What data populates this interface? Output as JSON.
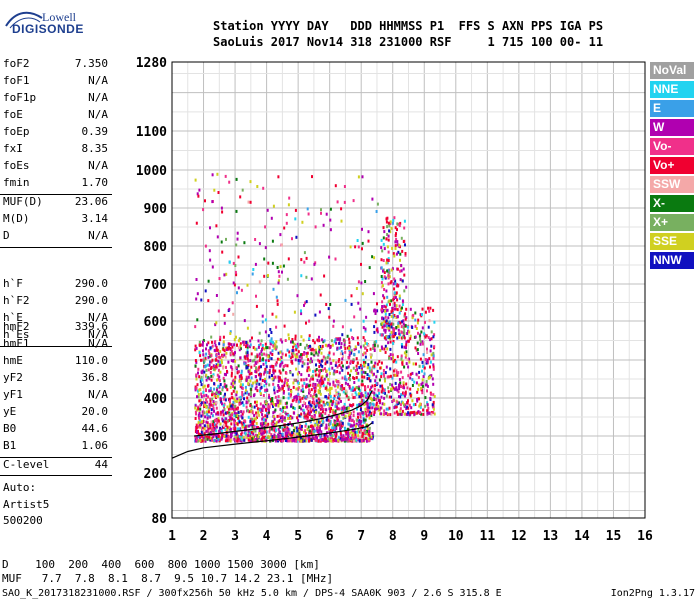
{
  "logo": {
    "line1": "Lowell",
    "line2": "DIGISONDE"
  },
  "header": {
    "line1": "Station YYYY DAY   DDD HHMMSS P1  FFS S AXN PPS IGA PS",
    "line2": "SaoLuis 2017 Nov14 318 231000 RSF     1 715 100 00- 11"
  },
  "params_group1": [
    {
      "name": "foF2",
      "value": "7.350"
    },
    {
      "name": "foF1",
      "value": "N/A"
    },
    {
      "name": "foF1p",
      "value": "N/A"
    },
    {
      "name": "foE",
      "value": "N/A"
    },
    {
      "name": "foEp",
      "value": "0.39"
    },
    {
      "name": "fxI",
      "value": "8.35"
    },
    {
      "name": "foEs",
      "value": "N/A"
    },
    {
      "name": "fmin",
      "value": "1.70"
    }
  ],
  "params_group2": [
    {
      "name": "MUF(D)",
      "value": "23.06"
    },
    {
      "name": "M(D)",
      "value": "3.14"
    },
    {
      "name": "D",
      "value": "N/A"
    }
  ],
  "params_group3": [
    {
      "name": "h`F",
      "value": "290.0"
    },
    {
      "name": "h`F2",
      "value": "290.0"
    },
    {
      "name": "h`E",
      "value": "N/A"
    },
    {
      "name": "h`Es",
      "value": "N/A"
    }
  ],
  "params_group4": [
    {
      "name": "hmF2",
      "value": "339.6"
    },
    {
      "name": "hmF1",
      "value": "N/A"
    },
    {
      "name": "hmE",
      "value": "110.0"
    },
    {
      "name": "yF2",
      "value": "36.8"
    },
    {
      "name": "yF1",
      "value": "N/A"
    },
    {
      "name": "yE",
      "value": "20.0"
    },
    {
      "name": "B0",
      "value": "44.6"
    },
    {
      "name": "B1",
      "value": "1.06"
    }
  ],
  "c_level": {
    "name": "C-level",
    "value": "44"
  },
  "auto": {
    "label": "Auto:",
    "artist": "Artist5",
    "code": "500200"
  },
  "legend": [
    {
      "label": "NoVal",
      "color": "#a0a0a0"
    },
    {
      "label": "NNE",
      "color": "#22d3f0"
    },
    {
      "label": "E",
      "color": "#3aa0e8"
    },
    {
      "label": "W",
      "color": "#b000b0"
    },
    {
      "label": "Vo-",
      "color": "#f0308a"
    },
    {
      "label": "Vo+",
      "color": "#f00030"
    },
    {
      "label": "SSW",
      "color": "#f4a8a8"
    },
    {
      "label": "X-",
      "color": "#0a7a10"
    },
    {
      "label": "X+",
      "color": "#78b060"
    },
    {
      "label": "SSE",
      "color": "#d0d020"
    },
    {
      "label": "NNW",
      "color": "#1010c0"
    }
  ],
  "footer": {
    "d_row": "D    100  200  400  600  800 1000 1500 3000 [km]",
    "muf_row": "MUF   7.7  7.8  8.1  8.7  9.5 10.7 14.2 23.1 [MHz]",
    "file_line": "SAO_K_2017318231000.RSF / 300fx256h 50 kHz 5.0 km / DPS-4 SAA0K 903 / 2.6 S 315.8 E",
    "version": "Ion2Png 1.3.17"
  },
  "chart_data": {
    "type": "scatter",
    "title": "",
    "xlabel": "",
    "ylabel": "",
    "x_ticks": [
      1,
      2,
      3,
      4,
      5,
      6,
      7,
      8,
      9,
      10,
      11,
      12,
      13,
      14,
      15,
      16
    ],
    "y_ticks": [
      80,
      200,
      300,
      400,
      500,
      600,
      700,
      800,
      900,
      1000,
      1100,
      1280
    ],
    "xlim": [
      1,
      16
    ],
    "ylim": [
      80,
      1280
    ],
    "grid": true,
    "legend_position": "right",
    "echo_clusters": [
      {
        "fmin": 1.7,
        "fmax": 7.35,
        "hmin": 290,
        "hmax": 560,
        "density": "high",
        "note": "F2 trace region"
      },
      {
        "fmin": 7.35,
        "fmax": 9.3,
        "hmin": 360,
        "hmax": 640,
        "density": "medium"
      },
      {
        "fmin": 1.7,
        "fmax": 7.5,
        "hmin": 560,
        "hmax": 1000,
        "density": "sparse"
      },
      {
        "fmin": 7.6,
        "fmax": 8.4,
        "hmin": 560,
        "hmax": 880,
        "density": "sparse"
      }
    ],
    "profile_curve": {
      "freq": [
        1.0,
        1.5,
        2.0,
        3.0,
        4.0,
        5.0,
        6.0,
        6.8,
        7.2,
        7.35
      ],
      "height": [
        240,
        258,
        268,
        278,
        287,
        297,
        308,
        318,
        325,
        335
      ]
    },
    "trace_curve": {
      "freq": [
        1.7,
        2.3,
        3.0,
        3.8,
        4.5,
        5.2,
        5.8,
        6.3,
        6.7,
        7.0,
        7.2,
        7.35
      ],
      "height": [
        300,
        305,
        312,
        320,
        328,
        337,
        347,
        358,
        368,
        380,
        395,
        420
      ]
    }
  }
}
